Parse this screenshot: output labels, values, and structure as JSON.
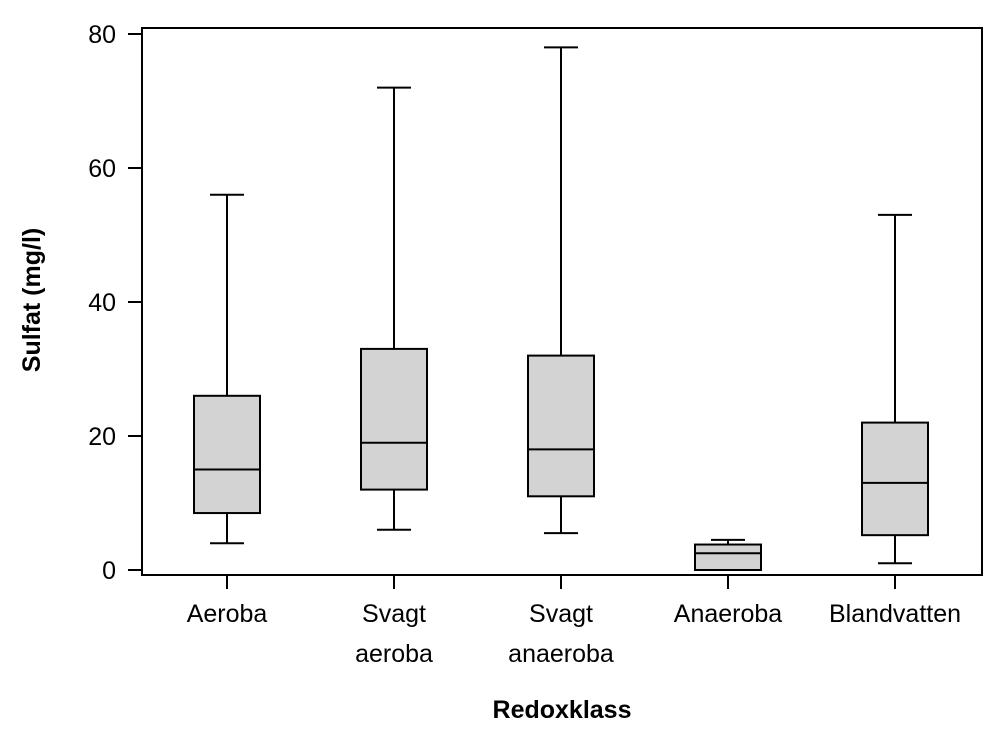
{
  "chart_data": {
    "type": "boxplot",
    "title": "",
    "xlabel": "Redoxklass",
    "ylabel": "Sulfat (mg/l)",
    "ylim": [
      0,
      80
    ],
    "yticks": [
      0,
      20,
      40,
      60,
      80
    ],
    "grid": false,
    "colors": {
      "box_fill": "#d3d3d3",
      "stroke": "#000000"
    },
    "categories": [
      {
        "lines": [
          "Aeroba"
        ],
        "min": 4,
        "q1": 8.5,
        "median": 15,
        "q3": 26,
        "max": 56
      },
      {
        "lines": [
          "Svagt",
          "aeroba"
        ],
        "min": 6,
        "q1": 12,
        "median": 19,
        "q3": 33,
        "max": 72
      },
      {
        "lines": [
          "Svagt",
          "anaeroba"
        ],
        "min": 5.5,
        "q1": 11,
        "median": 18,
        "q3": 32,
        "max": 78
      },
      {
        "lines": [
          "Anaeroba"
        ],
        "min": 0,
        "q1": 0,
        "median": 2.5,
        "q3": 3.8,
        "max": 4.5
      },
      {
        "lines": [
          "Blandvatten"
        ],
        "min": 1,
        "q1": 5.2,
        "median": 13,
        "q3": 22,
        "max": 53
      }
    ]
  }
}
